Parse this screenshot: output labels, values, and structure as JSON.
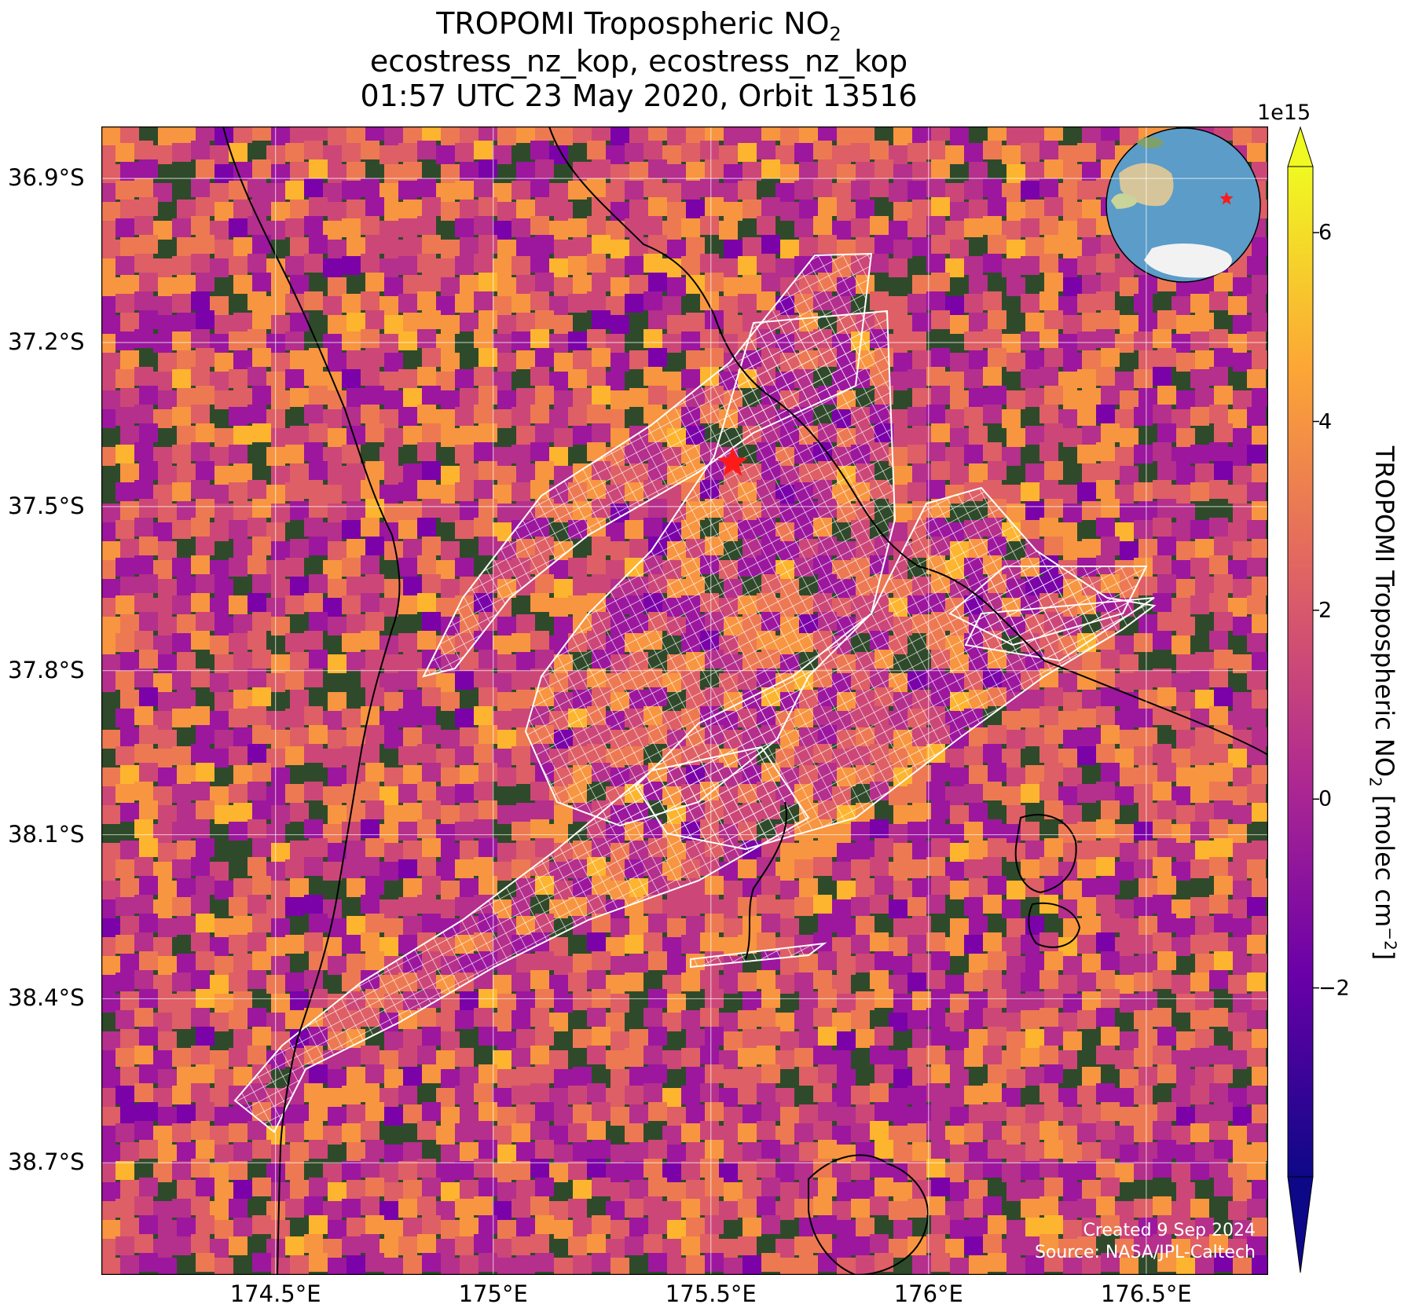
{
  "title": {
    "line1_main": "TROPOMI Tropospheric NO",
    "line1_sub": "2",
    "line2": "ecostress_nz_kop, ecostress_nz_kop",
    "line3": "01:57 UTC 23 May 2020, Orbit 13516"
  },
  "map": {
    "lat_ticks": [
      "36.9°S",
      "37.2°S",
      "37.5°S",
      "37.8°S",
      "38.1°S",
      "38.4°S",
      "38.7°S"
    ],
    "lon_ticks": [
      "174.5°E",
      "175°E",
      "175.5°E",
      "176°E",
      "176.5°E"
    ],
    "lat_extent": [
      -36.805,
      -38.905
    ],
    "lon_extent": [
      174.1,
      176.78
    ],
    "lat_tick_values": [
      -36.9,
      -37.2,
      -37.5,
      -37.8,
      -38.1,
      -38.4,
      -38.7
    ],
    "lon_tick_values": [
      174.5,
      175.0,
      175.5,
      176.0,
      176.5
    ],
    "target_marker": {
      "lat": -37.42,
      "lon": 175.55,
      "symbol": "red-star"
    },
    "inset_globe": {
      "marker": "red-star",
      "view": "south-pacific"
    }
  },
  "colorbar": {
    "colormap": "plasma",
    "label_main": "TROPOMI Tropospheric NO",
    "label_sub": "2",
    "label_units": " [molec cm",
    "label_exp": "−2",
    "label_end": "]",
    "exponent": "1e15",
    "ticks": [
      "6",
      "4",
      "2",
      "0",
      "−2"
    ],
    "tick_values": [
      6,
      4,
      2,
      0,
      -2
    ],
    "range": [
      -4.0,
      6.7
    ],
    "extend": "both",
    "colors": [
      "#0d0887",
      "#6a00a8",
      "#b12a90",
      "#e16462",
      "#fca636",
      "#f0f921"
    ]
  },
  "credits": {
    "created": "Created 9 Sep 2024",
    "source": "Source: NASA/JPL-Caltech"
  }
}
